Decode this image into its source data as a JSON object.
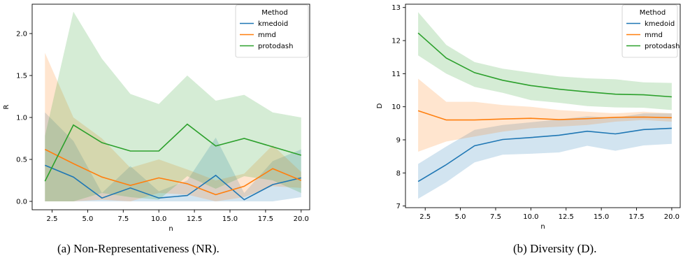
{
  "colors": {
    "kmedoid": "#1f77b4",
    "mmd": "#ff7f0e",
    "protodash": "#2ca02c",
    "axis": "#000000"
  },
  "captions": {
    "left": "(a) Non-Representativeness (NR).",
    "right": "(b) Diversity (D)."
  },
  "chart_data": [
    {
      "type": "line",
      "title": "",
      "xlabel": "n",
      "ylabel": "R",
      "xlim": [
        1.1,
        20.6
      ],
      "ylim": [
        -0.1,
        2.35
      ],
      "xticks": [
        2.5,
        5.0,
        7.5,
        10.0,
        12.5,
        15.0,
        17.5,
        20.0
      ],
      "xtick_labels": [
        "2.5",
        "5.0",
        "7.5",
        "10.0",
        "12.5",
        "15.0",
        "17.5",
        "20.0"
      ],
      "yticks": [
        0.0,
        0.5,
        1.0,
        1.5,
        2.0
      ],
      "ytick_labels": [
        "0.0",
        "0.5",
        "1.0",
        "1.5",
        "2.0"
      ],
      "grid": false,
      "legend": {
        "title": "Method",
        "placement": "top-right"
      },
      "x": [
        2,
        4,
        6,
        8,
        10,
        12,
        14,
        16,
        18,
        20
      ],
      "series": [
        {
          "name": "kmedoid",
          "values": [
            0.43,
            0.29,
            0.04,
            0.16,
            0.04,
            0.07,
            0.31,
            0.02,
            0.2,
            0.28
          ],
          "lower": [
            0.0,
            0.0,
            0.0,
            0.0,
            0.0,
            0.0,
            0.0,
            0.0,
            0.0,
            0.05
          ],
          "upper": [
            1.06,
            0.72,
            0.1,
            0.42,
            0.12,
            0.25,
            0.76,
            0.1,
            0.48,
            0.62
          ]
        },
        {
          "name": "mmd",
          "values": [
            0.62,
            0.45,
            0.29,
            0.19,
            0.28,
            0.21,
            0.08,
            0.18,
            0.39,
            0.25
          ],
          "lower": [
            0.0,
            0.0,
            0.02,
            0.0,
            0.1,
            0.08,
            0.0,
            0.05,
            0.18,
            0.16
          ],
          "upper": [
            1.77,
            1.0,
            0.75,
            0.4,
            0.5,
            0.38,
            0.25,
            0.33,
            0.67,
            0.35
          ]
        },
        {
          "name": "protodash",
          "values": [
            0.24,
            0.91,
            0.7,
            0.6,
            0.6,
            0.92,
            0.66,
            0.75,
            0.65,
            0.55
          ],
          "lower": [
            0.0,
            0.0,
            0.1,
            0.05,
            0.02,
            0.3,
            0.15,
            0.3,
            0.25,
            0.1
          ],
          "upper": [
            0.78,
            2.26,
            1.7,
            1.28,
            1.16,
            1.5,
            1.2,
            1.27,
            1.06,
            1.0
          ]
        }
      ]
    },
    {
      "type": "line",
      "title": "",
      "xlabel": "n",
      "ylabel": "D",
      "xlim": [
        1.1,
        20.6
      ],
      "ylim": [
        6.95,
        13.1
      ],
      "xticks": [
        2.5,
        5.0,
        7.5,
        10.0,
        12.5,
        15.0,
        17.5,
        20.0
      ],
      "xtick_labels": [
        "2.5",
        "5.0",
        "7.5",
        "10.0",
        "12.5",
        "15.0",
        "17.5",
        "20.0"
      ],
      "yticks": [
        7,
        8,
        9,
        10,
        11,
        12,
        13
      ],
      "ytick_labels": [
        "7",
        "8",
        "9",
        "10",
        "11",
        "12",
        "13"
      ],
      "grid": false,
      "legend": {
        "title": "Method",
        "placement": "top-right"
      },
      "x": [
        2,
        4,
        6,
        8,
        10,
        12,
        14,
        16,
        18,
        20
      ],
      "series": [
        {
          "name": "kmedoid",
          "values": [
            7.74,
            8.25,
            8.82,
            9.01,
            9.07,
            9.14,
            9.26,
            9.18,
            9.31,
            9.35
          ],
          "lower": [
            7.22,
            7.72,
            8.32,
            8.55,
            8.58,
            8.62,
            8.82,
            8.67,
            8.83,
            8.88
          ],
          "upper": [
            8.27,
            8.8,
            9.3,
            9.45,
            9.53,
            9.62,
            9.71,
            9.67,
            9.8,
            9.8
          ]
        },
        {
          "name": "mmd",
          "values": [
            9.88,
            9.6,
            9.6,
            9.63,
            9.65,
            9.61,
            9.64,
            9.68,
            9.69,
            9.67
          ],
          "lower": [
            8.64,
            8.95,
            9.1,
            9.25,
            9.35,
            9.4,
            9.45,
            9.55,
            9.6,
            9.55
          ],
          "upper": [
            10.85,
            10.15,
            10.15,
            10.05,
            10.0,
            9.9,
            9.85,
            9.8,
            9.85,
            9.8
          ]
        },
        {
          "name": "protodash",
          "values": [
            12.23,
            11.47,
            11.03,
            10.8,
            10.64,
            10.53,
            10.45,
            10.38,
            10.36,
            10.3
          ],
          "lower": [
            11.55,
            11.0,
            10.6,
            10.42,
            10.2,
            10.12,
            10.02,
            9.98,
            9.97,
            9.9
          ],
          "upper": [
            12.86,
            11.87,
            11.35,
            11.15,
            11.03,
            10.92,
            10.86,
            10.83,
            10.74,
            10.72
          ]
        }
      ]
    }
  ]
}
